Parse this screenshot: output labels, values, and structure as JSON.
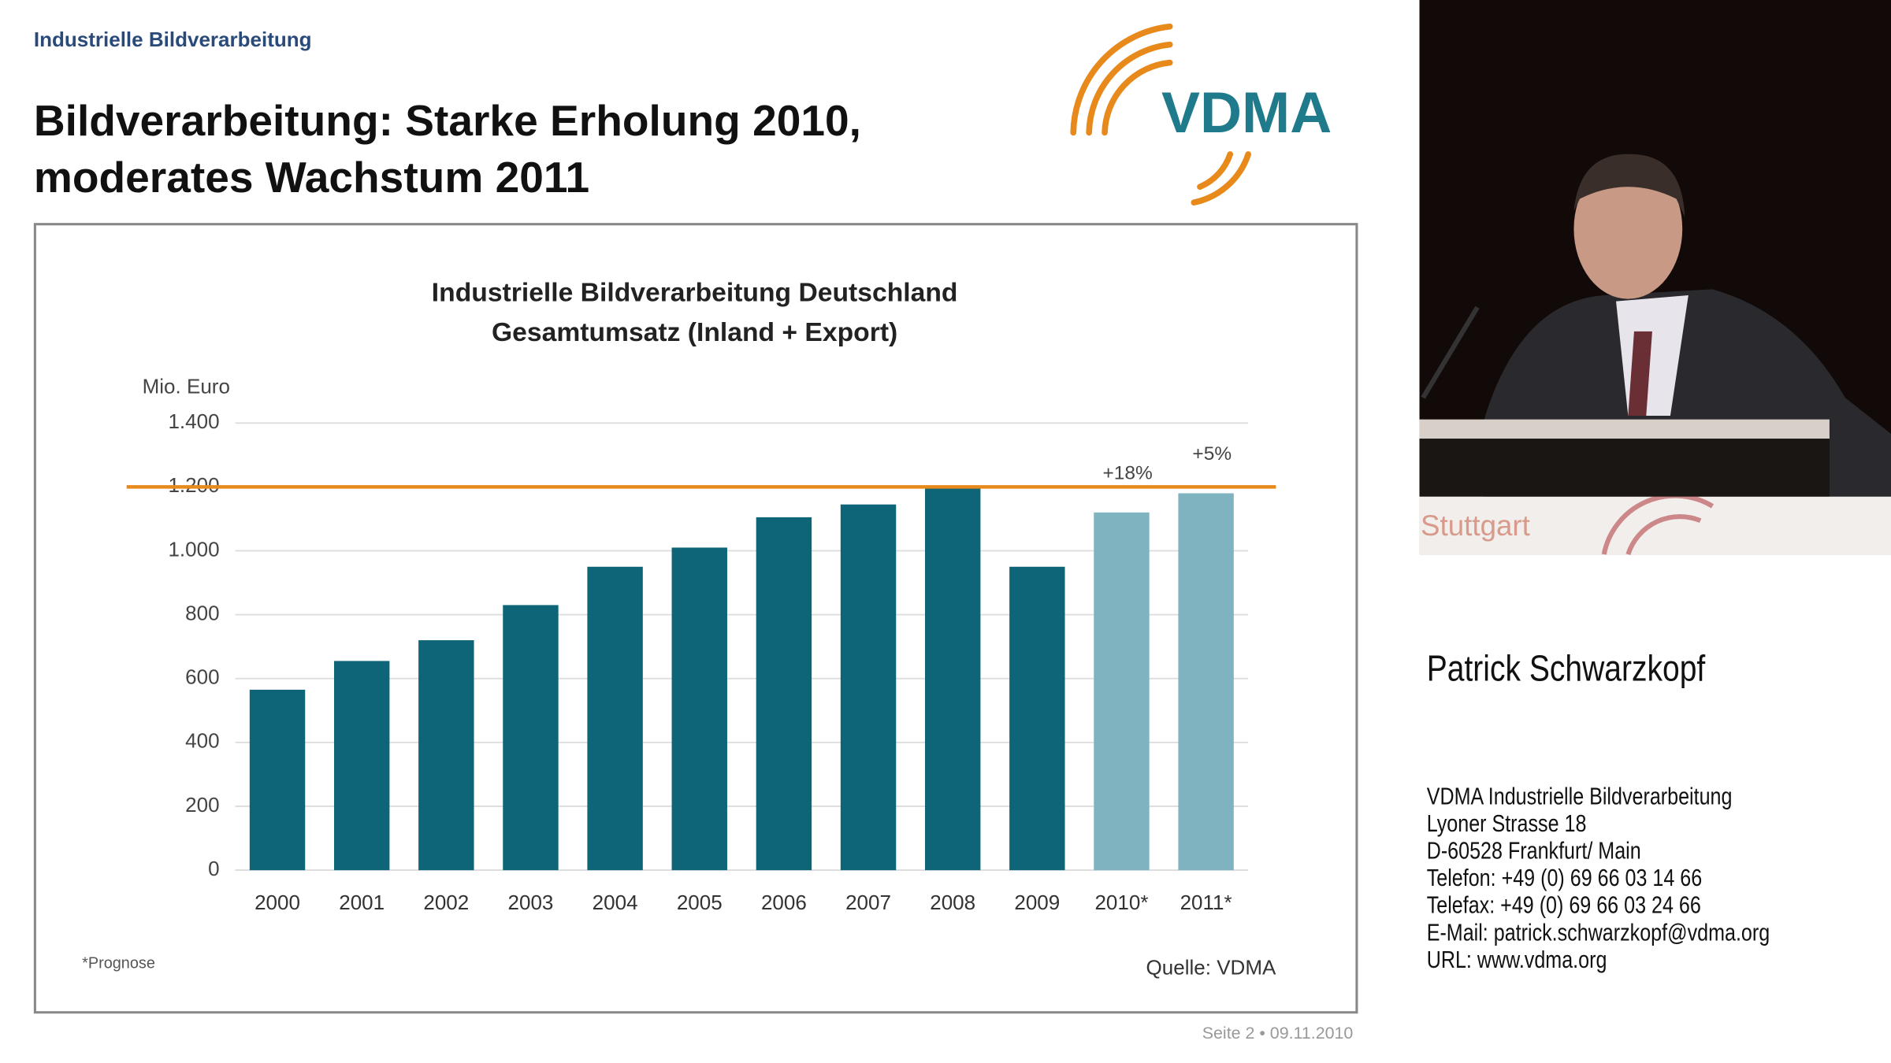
{
  "header": {
    "section": "Industrielle Bildverarbeitung",
    "title_lines": [
      "Bildverarbeitung: Starke Erholung 2010,",
      "moderates Wachstum 2011"
    ],
    "logo": "VDMA"
  },
  "chart_data": {
    "type": "bar",
    "title_lines": [
      "Industrielle Bildverarbeitung Deutschland",
      "Gesamtumsatz (Inland + Export)"
    ],
    "y_label": "Mio. Euro",
    "categories": [
      "2000",
      "2001",
      "2002",
      "2003",
      "2004",
      "2005",
      "2006",
      "2007",
      "2008",
      "2009",
      "2010*",
      "2011*"
    ],
    "values": [
      565,
      655,
      720,
      830,
      950,
      1010,
      1105,
      1145,
      1200,
      950,
      1120,
      1180
    ],
    "colors": [
      "#0e6577",
      "#0e6577",
      "#0e6577",
      "#0e6577",
      "#0e6577",
      "#0e6577",
      "#0e6577",
      "#0e6577",
      "#0e6577",
      "#0e6577",
      "#7fb3c0",
      "#7fb3c0"
    ],
    "ylim": [
      0,
      1400
    ],
    "yticks": [
      0,
      200,
      400,
      600,
      800,
      {
        "value": 1000,
        "label": "1.000"
      },
      {
        "value": 1200,
        "label": "1.200"
      },
      {
        "value": 1400,
        "label": "1.400"
      }
    ],
    "grid": true,
    "reference_line": {
      "value": 1200,
      "color": "#e8891c"
    },
    "annotations": [
      {
        "category": "2010*",
        "text": "+18%"
      },
      {
        "category": "2011*",
        "text": "+5%"
      }
    ],
    "footnote": "*Prognose",
    "source": "Quelle: VDMA"
  },
  "footer": "Seite 2 • 09.11.2010",
  "video": {
    "backdrop_text": "Stuttgart"
  },
  "speaker": {
    "name": "Patrick Schwarzkopf",
    "contact": [
      "VDMA Industrielle Bildverarbeitung",
      "Lyoner Strasse 18",
      "D-60528 Frankfurt/ Main",
      "Telefon: +49 (0) 69 66 03 14 66",
      "Telefax: +49 (0) 69 66 03 24 66",
      "E-Mail: patrick.schwarzkopf@vdma.org",
      "URL: www.vdma.org"
    ]
  }
}
